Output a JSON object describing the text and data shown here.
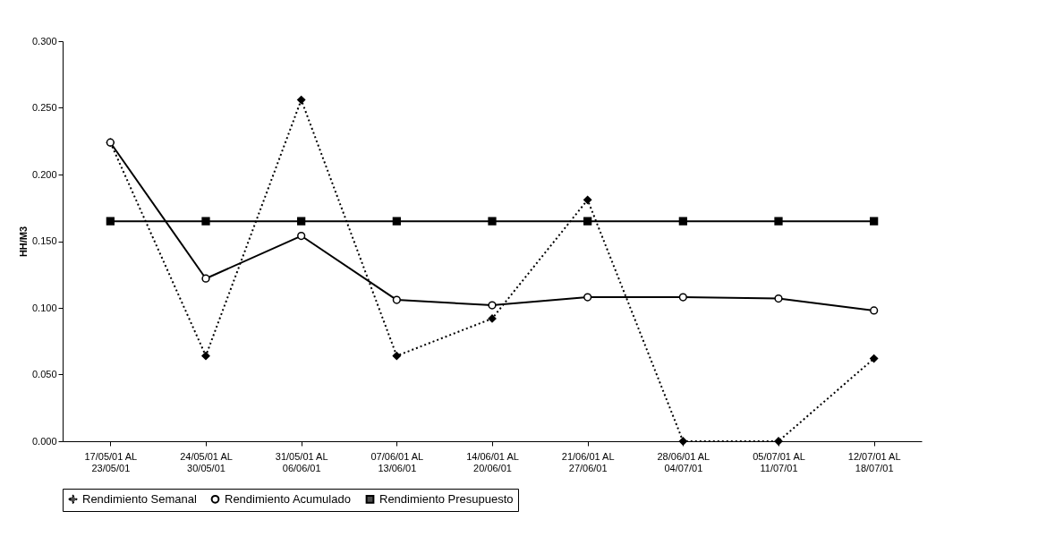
{
  "chart_data": {
    "type": "line",
    "ylabel": "HH/M3",
    "categories": [
      "17/05/01 AL 23/05/01",
      "24/05/01 AL 30/05/01",
      "31/05/01 AL 06/06/01",
      "07/06/01 AL 13/06/01",
      "14/06/01 AL 20/06/01",
      "21/06/01 AL 27/06/01",
      "28/06/01 AL 04/07/01",
      "05/07/01 AL 11/07/01",
      "12/07/01 AL 18/07/01"
    ],
    "series": [
      {
        "name": "Rendimiento Semanal",
        "color": "#000000",
        "marker": "diamond",
        "line_style": "dotted",
        "values": [
          0.224,
          0.064,
          0.256,
          0.064,
          0.092,
          0.181,
          0.0,
          0.0,
          0.062
        ]
      },
      {
        "name": "Rendimiento Acumulado",
        "color": "#000000",
        "marker": "circle",
        "line_style": "solid",
        "values": [
          0.224,
          0.122,
          0.154,
          0.106,
          0.102,
          0.108,
          0.108,
          0.107,
          0.098
        ]
      },
      {
        "name": "Rendimiento Presupuesto",
        "color": "#000000",
        "marker": "square",
        "line_style": "solid",
        "values": [
          0.165,
          0.165,
          0.165,
          0.165,
          0.165,
          0.165,
          0.165,
          0.165,
          0.165
        ]
      }
    ],
    "ylim": [
      0,
      0.3
    ],
    "yticks": [
      {
        "value": 0,
        "label": "0.000"
      },
      {
        "value": 0.05,
        "label": "0.050"
      },
      {
        "value": 0.1,
        "label": "0.100"
      },
      {
        "value": 0.15,
        "label": "0.150"
      },
      {
        "value": 0.2,
        "label": "0.200"
      },
      {
        "value": 0.25,
        "label": "0.250"
      },
      {
        "value": 0.3,
        "label": "0.300"
      }
    ],
    "grid": false,
    "legend": "bottom"
  }
}
